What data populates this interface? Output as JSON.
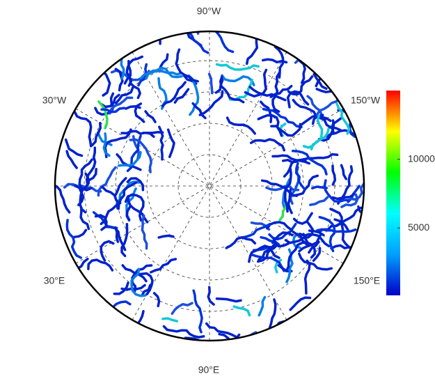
{
  "map": {
    "longitude_labels": [
      "90°W",
      "30°W",
      "150°W",
      "30°E",
      "150°E",
      "90°E"
    ]
  },
  "colorbar": {
    "range": [
      100,
      15000
    ],
    "ticks": [
      5000,
      10000
    ],
    "colors": [
      "#0000c8",
      "#00a0ff",
      "#00ffff",
      "#00ff00",
      "#ffff00",
      "#ff0000"
    ]
  }
}
